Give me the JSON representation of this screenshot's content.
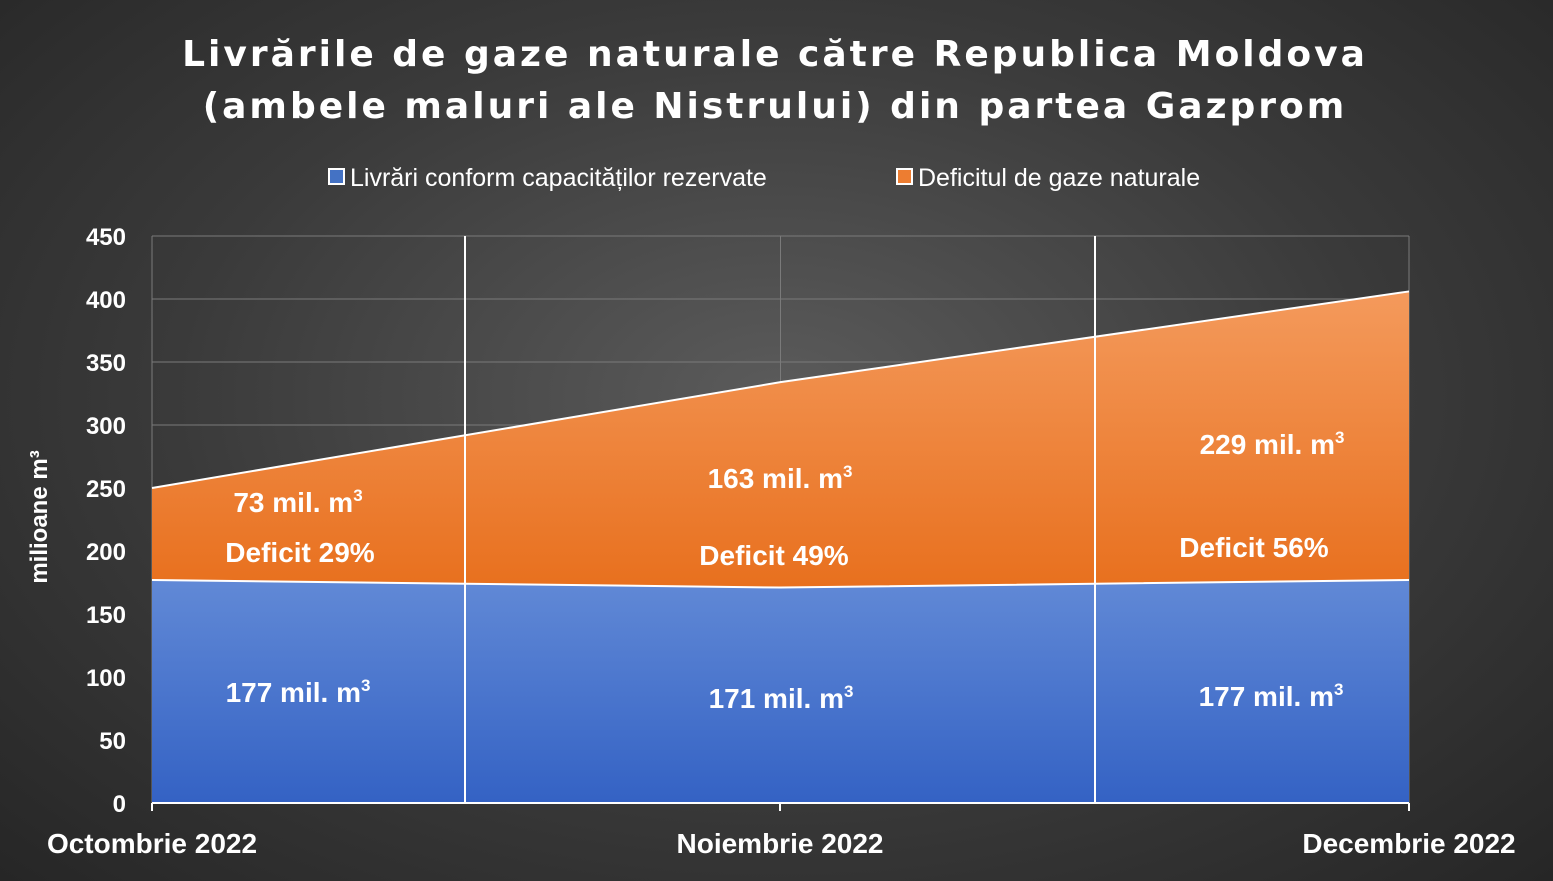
{
  "chart_data": {
    "type": "area",
    "title": [
      "Livrările de gaze naturale către Republica Moldova",
      "(ambele maluri ale Nistrului) din partea Gazprom"
    ],
    "ylabel": "milioane m³",
    "ylim": [
      0,
      450
    ],
    "yticks": [
      0,
      50,
      100,
      150,
      200,
      250,
      300,
      350,
      400,
      450
    ],
    "categories": [
      "Octombrie 2022",
      "Noiembrie 2022",
      "Decembrie 2022"
    ],
    "stacked": true,
    "legend_position": "top",
    "series": [
      {
        "name": "Livrări conform capacităților rezervate",
        "color": "#4472c4",
        "values": [
          177,
          171,
          177
        ]
      },
      {
        "name": "Deficitul de gaze naturale",
        "color": "#ed7d31",
        "values": [
          73,
          163,
          229
        ]
      }
    ],
    "annotations": [
      {
        "label": "177 mil. m",
        "sup": "3"
      },
      {
        "label": "171 mil. m",
        "sup": "3"
      },
      {
        "label": "177 mil. m",
        "sup": "3"
      },
      {
        "label": "73 mil. m",
        "sup": "3"
      },
      {
        "label": "163 mil. m",
        "sup": "3"
      },
      {
        "label": "229 mil. m",
        "sup": "3"
      },
      {
        "label": "Deficit 29%"
      },
      {
        "label": "Deficit 49%"
      },
      {
        "label": "Deficit 56%"
      }
    ]
  }
}
